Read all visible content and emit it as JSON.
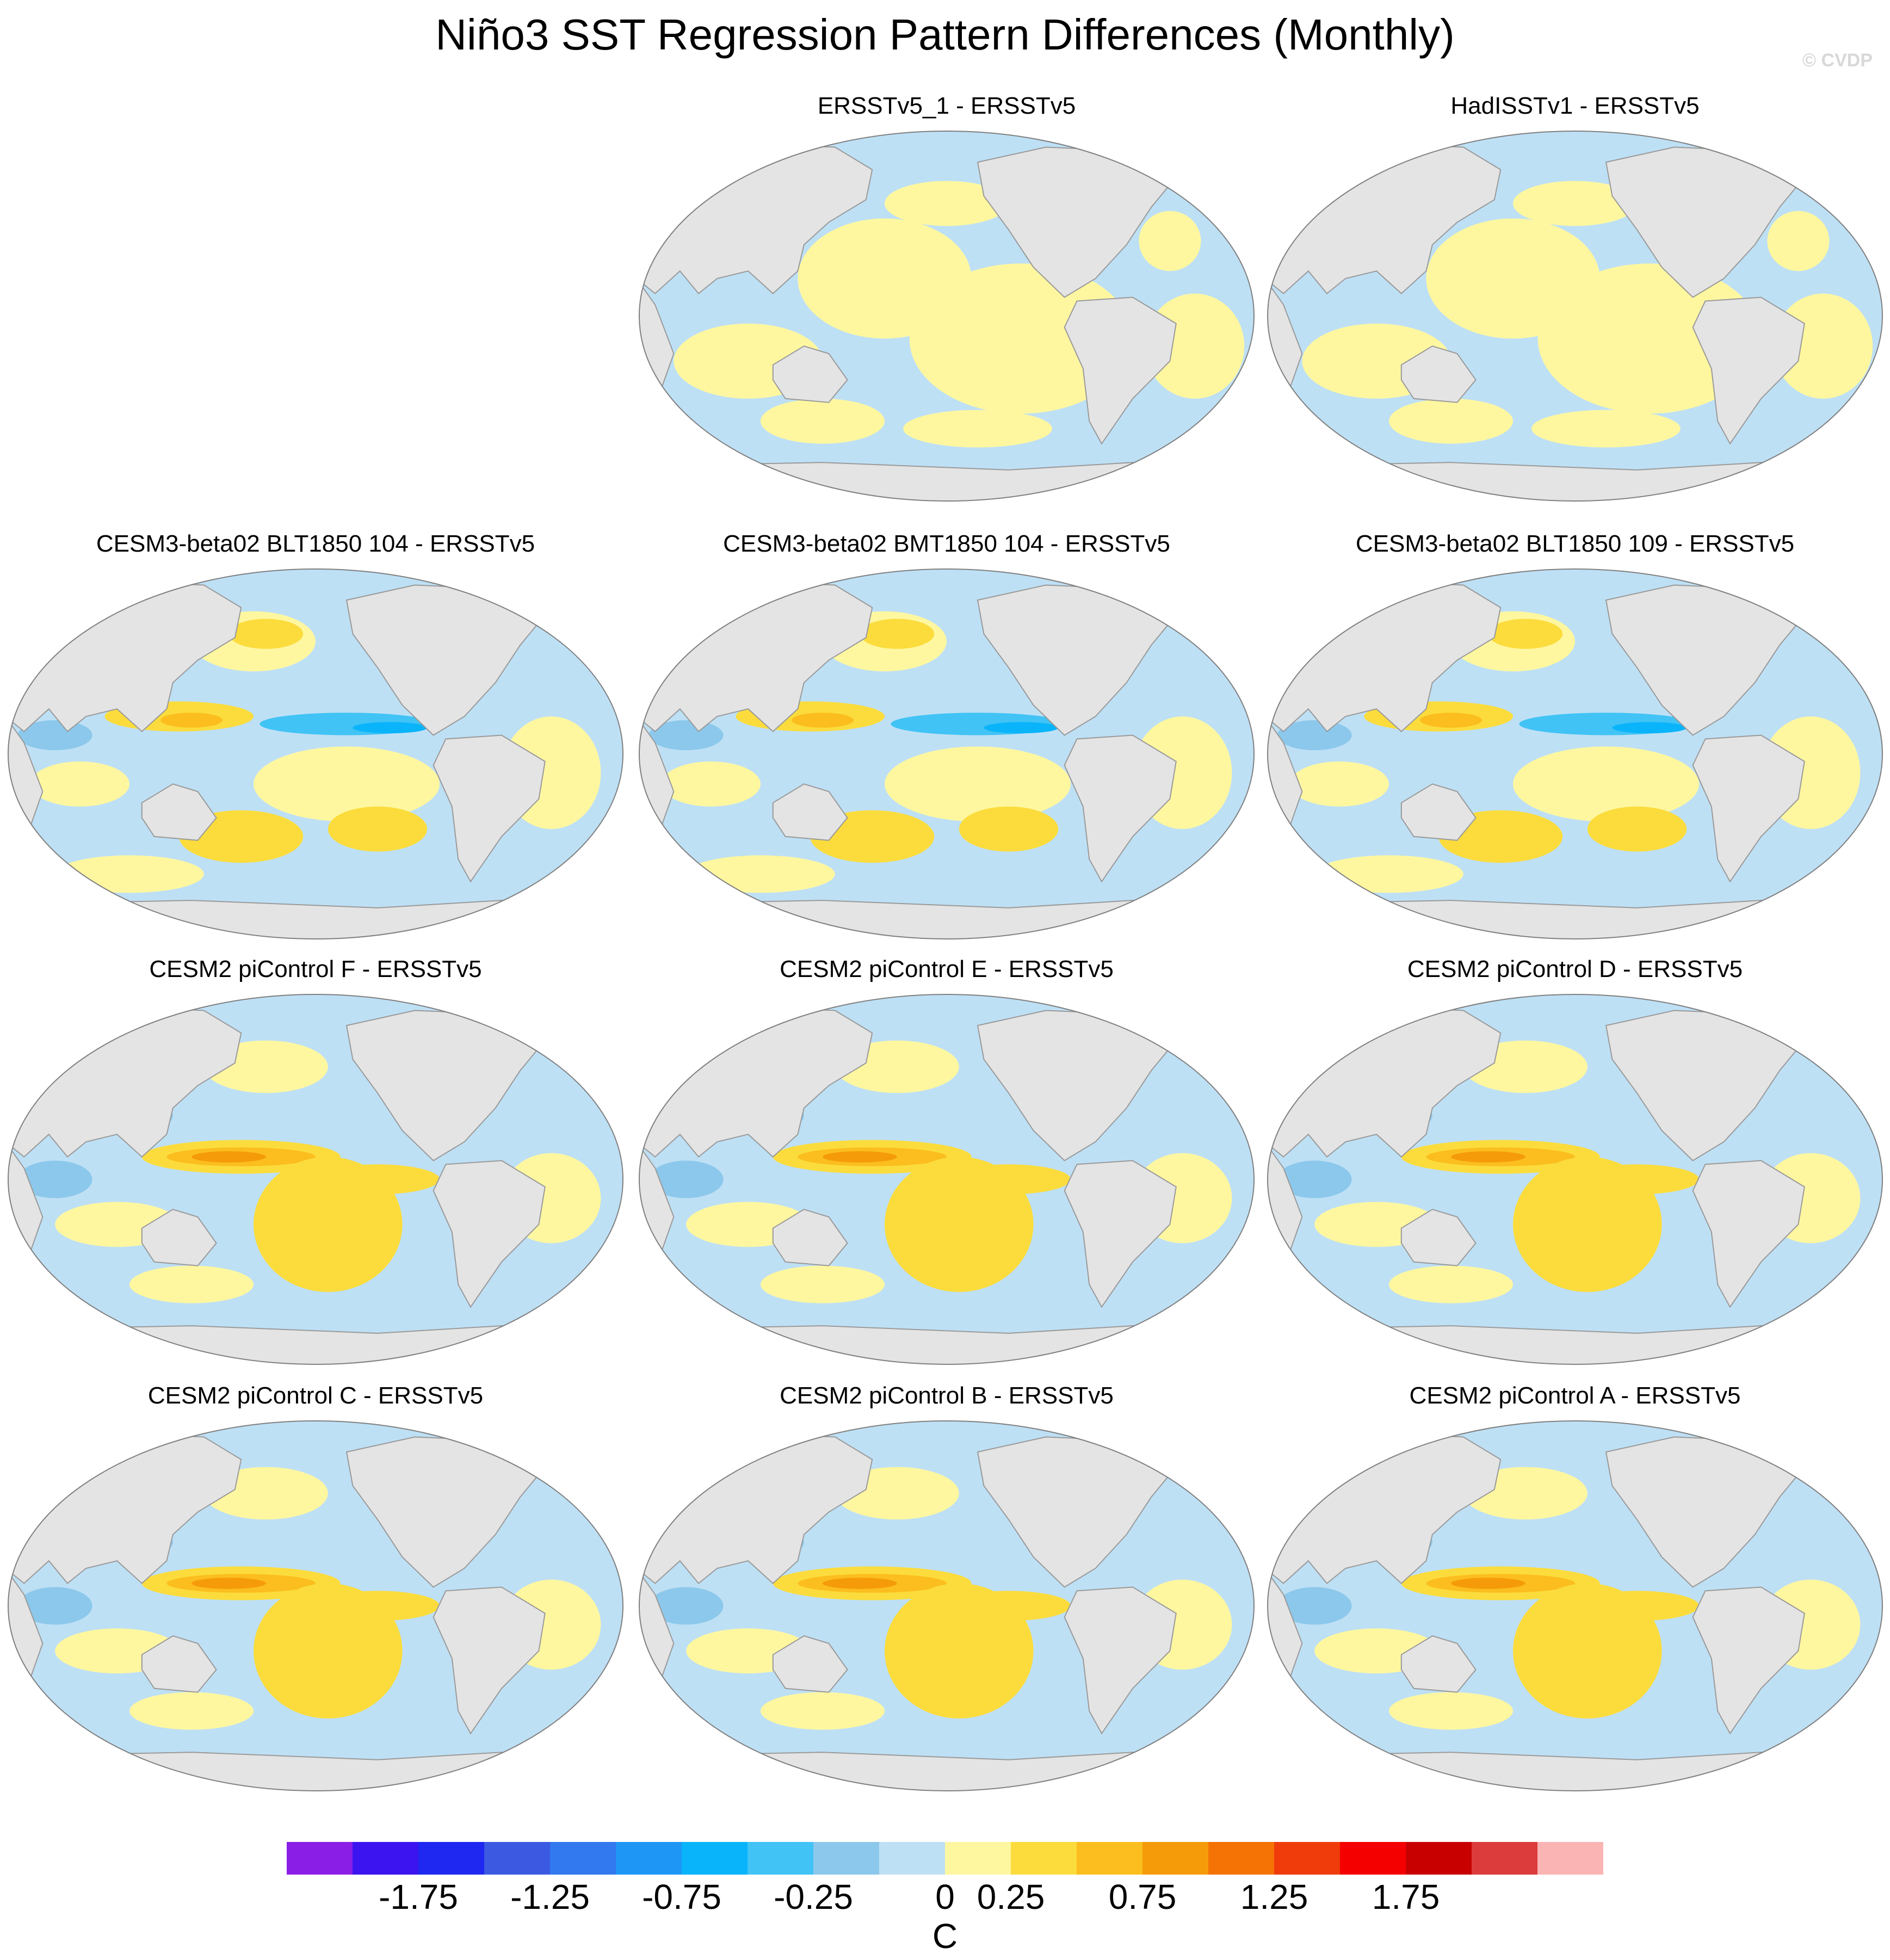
{
  "title": "Niño3 SST Regression Pattern Differences (Monthly)",
  "copyright": "© CVDP",
  "panels": [
    {
      "title": "ERSSTv5_1 - ERSSTv5",
      "pattern": "obs"
    },
    {
      "title": "HadISSTv1 - ERSSTv5",
      "pattern": "obs"
    },
    {
      "title": "CESM3-beta02 BLT1850 104 - ERSSTv5",
      "pattern": "cesm3"
    },
    {
      "title": "CESM3-beta02 BMT1850 104 - ERSSTv5",
      "pattern": "cesm3"
    },
    {
      "title": "CESM3-beta02 BLT1850 109 - ERSSTv5",
      "pattern": "cesm3"
    },
    {
      "title": "CESM2 piControl F - ERSSTv5",
      "pattern": "cesm2"
    },
    {
      "title": "CESM2 piControl E - ERSSTv5",
      "pattern": "cesm2"
    },
    {
      "title": "CESM2 piControl D - ERSSTv5",
      "pattern": "cesm2"
    },
    {
      "title": "CESM2 piControl C - ERSSTv5",
      "pattern": "cesm2"
    },
    {
      "title": "CESM2 piControl B - ERSSTv5",
      "pattern": "cesm2"
    },
    {
      "title": "CESM2 piControl A - ERSSTv5",
      "pattern": "cesm2"
    }
  ],
  "colorbar": {
    "colors": [
      "#8a1ee6",
      "#3c14f0",
      "#1e28f0",
      "#3c5ae1",
      "#3278ee",
      "#1e96f5",
      "#0ab4fa",
      "#41c3f5",
      "#8cc8eb",
      "#bee0f5",
      "#fff7a0",
      "#fbdc3c",
      "#fbbe1e",
      "#f59b0a",
      "#f57305",
      "#f03c0a",
      "#f50000",
      "#c80000",
      "#dc3c3c",
      "#fab4b4"
    ],
    "labels": [
      "-1.75",
      "-1.25",
      "-0.75",
      "-0.25",
      "0",
      "0.25",
      "0.75",
      "1.25",
      "1.75"
    ],
    "units": "C"
  },
  "colors": {
    "land": "#e4e4e4",
    "coast": "#9a9a9a",
    "neutral_neg": "#bee0f5",
    "neutral_pos": "#fff7a0"
  }
}
